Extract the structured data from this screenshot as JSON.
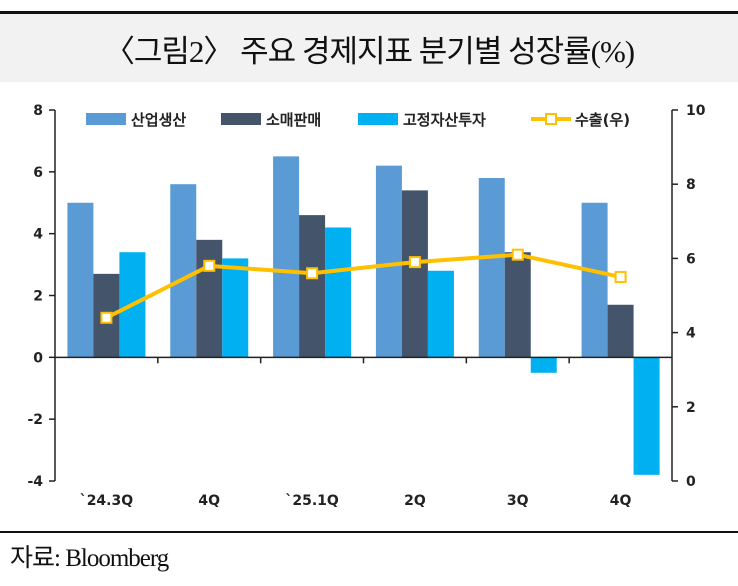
{
  "header": {
    "title": "〈그림2〉 주요 경제지표 분기별 성장률(%)"
  },
  "footer": {
    "source": "자료: Bloomberg"
  },
  "chart_data": {
    "type": "bar",
    "title": "〈그림2〉 주요 경제지표 분기별 성장률(%)",
    "categories": [
      "`24.3Q",
      "4Q",
      "`25.1Q",
      "2Q",
      "3Q",
      "4Q"
    ],
    "series": [
      {
        "name": "산업생산",
        "type": "bar",
        "axis": "left",
        "color": "#5b9bd5",
        "values": [
          5.0,
          5.6,
          6.5,
          6.2,
          5.8,
          5.0
        ]
      },
      {
        "name": "소매판매",
        "type": "bar",
        "axis": "left",
        "color": "#44546a",
        "values": [
          2.7,
          3.8,
          4.6,
          5.4,
          3.4,
          1.7
        ]
      },
      {
        "name": "고정자산투자",
        "type": "bar",
        "axis": "left",
        "color": "#00b0f0",
        "values": [
          3.4,
          3.2,
          4.2,
          2.8,
          -0.5,
          -3.8
        ]
      },
      {
        "name": "수출(우)",
        "type": "line",
        "axis": "right",
        "color": "#ffc000",
        "values": [
          4.4,
          5.8,
          5.6,
          5.9,
          6.1,
          5.5
        ]
      }
    ],
    "y_left": {
      "min": -4,
      "max": 8,
      "ticks": [
        8,
        6,
        4,
        2,
        0,
        -2,
        -4
      ]
    },
    "y_right": {
      "min": 0,
      "max": 10,
      "ticks": [
        10,
        8,
        6,
        4,
        2,
        0
      ]
    },
    "legend": {
      "position": "top",
      "labels": [
        "산업생산",
        "소매판매",
        "고정자산투자",
        "수출(우)"
      ]
    },
    "grid": false
  }
}
